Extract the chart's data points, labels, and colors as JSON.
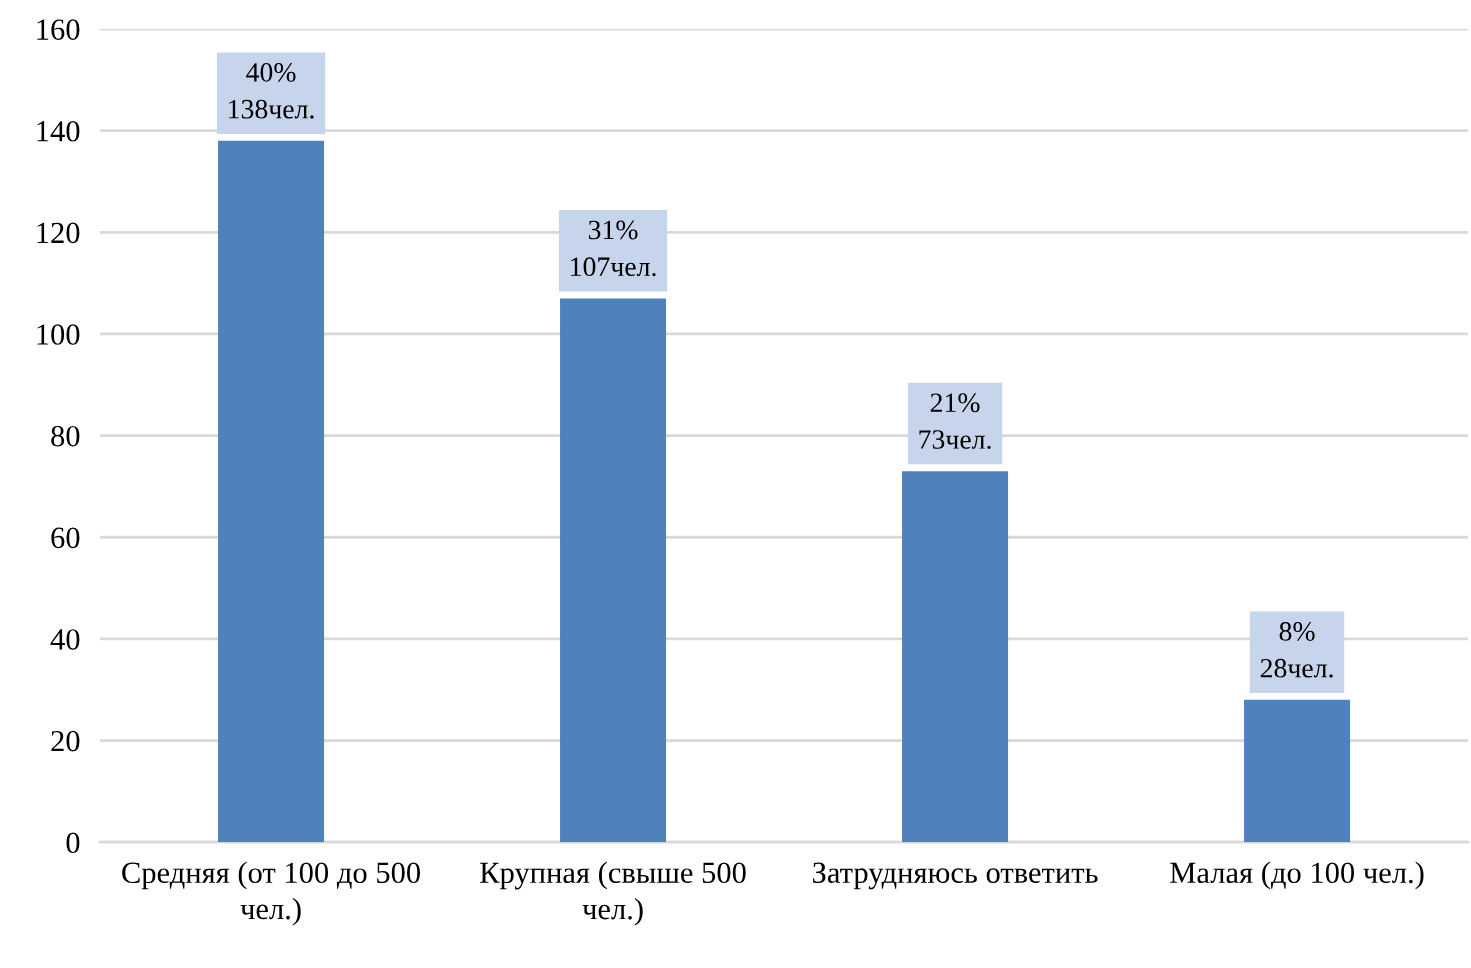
{
  "chart_data": {
    "type": "bar",
    "categories": [
      "Средняя (от 100 до 500 чел.)",
      "Крупная (свыше 500 чел.)",
      "Затрудняюсь ответить",
      "Малая (до 100 чел.)"
    ],
    "values": [
      138,
      107,
      73,
      28
    ],
    "value_labels": [
      "40%\n138чел.",
      "31%\n107чел.",
      "21%\n73чел.",
      "8%\n28чел."
    ],
    "color": "#4f81bd",
    "ylim": [
      0,
      160
    ],
    "yticks": [
      0,
      20,
      40,
      60,
      80,
      100,
      120,
      140,
      160
    ],
    "grid": "y"
  }
}
